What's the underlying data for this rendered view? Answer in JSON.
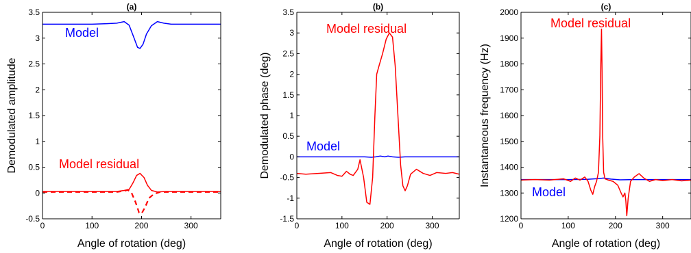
{
  "chart_data": [
    {
      "type": "line",
      "title": "(a)",
      "xlabel": "Angle of rotation (deg)",
      "ylabel": "Demodulated amplitude",
      "xlim": [
        0,
        360
      ],
      "ylim": [
        -0.5,
        3.5
      ],
      "xticks": [
        "0",
        "100",
        "200",
        "300"
      ],
      "yticks": [
        "-0.5",
        "0",
        "0.5",
        "1",
        "1.5",
        "2",
        "2.5",
        "3",
        "3.5"
      ],
      "grid": false,
      "annotations": [
        {
          "text": "Model",
          "color": "#0000ff",
          "x": 20,
          "y": 3.05
        },
        {
          "text": "Model residual",
          "color": "#ff0000",
          "x": 15,
          "y": 0.75
        }
      ],
      "series": [
        {
          "color": "#0000ff",
          "dash": false,
          "x": [
            0,
            100,
            130,
            150,
            165,
            175,
            185,
            192,
            197,
            203,
            210,
            220,
            232,
            245,
            260,
            300,
            360
          ],
          "y": [
            3.27,
            3.27,
            3.28,
            3.29,
            3.32,
            3.25,
            3.0,
            2.82,
            2.8,
            2.88,
            3.08,
            3.24,
            3.32,
            3.29,
            3.27,
            3.27,
            3.27
          ]
        },
        {
          "color": "#ff0000",
          "dash": false,
          "x": [
            0,
            150,
            165,
            175,
            183,
            190,
            197,
            205,
            212,
            220,
            232,
            250,
            360
          ],
          "y": [
            0.03,
            0.03,
            0.05,
            0.07,
            0.2,
            0.34,
            0.38,
            0.3,
            0.15,
            0.05,
            0.02,
            0.03,
            0.03
          ]
        },
        {
          "color": "#ff0000",
          "dash": true,
          "x": [
            0,
            150,
            165,
            172,
            180,
            188,
            195,
            200,
            207,
            215,
            225,
            238,
            250,
            360
          ],
          "y": [
            0.02,
            0.02,
            0.04,
            0.06,
            0.0,
            -0.18,
            -0.38,
            -0.4,
            -0.28,
            -0.1,
            -0.02,
            0.02,
            0.02,
            0.02
          ]
        }
      ]
    },
    {
      "type": "line",
      "title": "(b)",
      "xlabel": "Angle of rotation (deg)",
      "ylabel": "Demodulated phase (deg)",
      "xlim": [
        0,
        360
      ],
      "ylim": [
        -1.5,
        3.5
      ],
      "xticks": [
        "0",
        "100",
        "200",
        "300"
      ],
      "yticks": [
        "-1.5",
        "-1",
        "-0.5",
        "0",
        "0.5",
        "1",
        "1.5",
        "2",
        "2.5",
        "3",
        "3.5"
      ],
      "grid": false,
      "annotations": [
        {
          "text": "Model",
          "color": "#0000ff",
          "x": 30,
          "y": 0.12
        },
        {
          "text": "Model residual",
          "color": "#ff0000",
          "x": 120,
          "y": 2.95
        }
      ],
      "series": [
        {
          "color": "#0000ff",
          "dash": false,
          "x": [
            0,
            150,
            165,
            175,
            185,
            195,
            202,
            212,
            225,
            240,
            360
          ],
          "y": [
            0.0,
            0.0,
            -0.01,
            0.0,
            0.02,
            0.0,
            0.02,
            0.0,
            -0.01,
            0.0,
            0.0
          ]
        },
        {
          "color": "#ff0000",
          "dash": false,
          "x": [
            0,
            20,
            50,
            75,
            90,
            100,
            110,
            118,
            125,
            135,
            140,
            148,
            155,
            162,
            168,
            173,
            177,
            182,
            190,
            198,
            205,
            212,
            218,
            225,
            230,
            235,
            240,
            245,
            252,
            265,
            280,
            295,
            310,
            330,
            345,
            360
          ],
          "y": [
            -0.4,
            -0.42,
            -0.4,
            -0.38,
            -0.45,
            -0.47,
            -0.35,
            -0.42,
            -0.45,
            -0.3,
            -0.07,
            -0.5,
            -1.1,
            -1.15,
            -0.5,
            1.0,
            2.0,
            2.2,
            2.5,
            2.85,
            3.0,
            2.9,
            2.2,
            0.8,
            -0.2,
            -0.7,
            -0.82,
            -0.7,
            -0.42,
            -0.3,
            -0.4,
            -0.45,
            -0.38,
            -0.4,
            -0.38,
            -0.42
          ]
        }
      ]
    },
    {
      "type": "line",
      "title": "(c)",
      "xlabel": "Angle of rotation (deg)",
      "ylabel": "Instantaneous frequency (Hz)",
      "xlim": [
        0,
        360
      ],
      "ylim": [
        1200,
        2000
      ],
      "xticks": [
        "0",
        "100",
        "200",
        "300"
      ],
      "yticks": [
        "1200",
        "1300",
        "1400",
        "1500",
        "1600",
        "1700",
        "1800",
        "1900",
        "2000"
      ],
      "grid": false,
      "annotations": [
        {
          "text": "Model",
          "color": "#0000ff",
          "x": 32,
          "y": 1305
        },
        {
          "text": "Model residual",
          "color": "#ff0000",
          "x": 70,
          "y": 1950
        }
      ],
      "series": [
        {
          "color": "#0000ff",
          "dash": false,
          "x": [
            0,
            100,
            140,
            165,
            175,
            190,
            210,
            240,
            280,
            360
          ],
          "y": [
            1352,
            1352,
            1353,
            1356,
            1358,
            1354,
            1351,
            1352,
            1352,
            1352
          ]
        },
        {
          "color": "#ff0000",
          "dash": false,
          "x": [
            0,
            30,
            60,
            90,
            105,
            115,
            125,
            135,
            142,
            148,
            152,
            156,
            160,
            164,
            167,
            169,
            170.5,
            171.5,
            173,
            175,
            178,
            185,
            195,
            205,
            212,
            216,
            220,
            222,
            224,
            227,
            232,
            240,
            250,
            260,
            272,
            285,
            300,
            320,
            340,
            360
          ],
          "y": [
            1350,
            1352,
            1350,
            1355,
            1345,
            1358,
            1350,
            1362,
            1345,
            1310,
            1295,
            1325,
            1345,
            1380,
            1520,
            1800,
            1935,
            1800,
            1520,
            1380,
            1355,
            1350,
            1345,
            1330,
            1300,
            1285,
            1300,
            1270,
            1212,
            1280,
            1345,
            1362,
            1375,
            1358,
            1345,
            1352,
            1348,
            1352,
            1347,
            1350
          ]
        }
      ]
    }
  ]
}
